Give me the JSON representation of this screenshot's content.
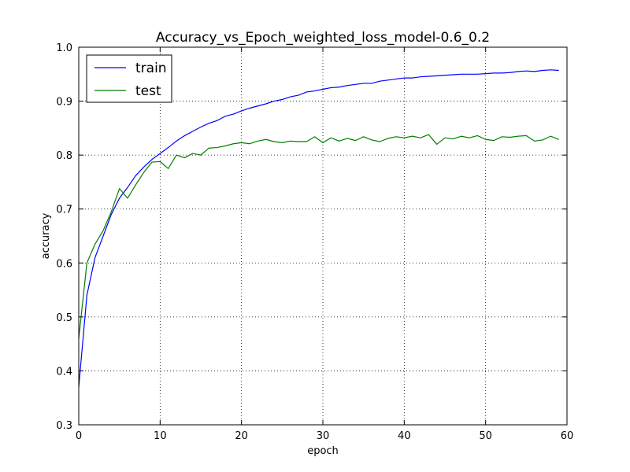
{
  "chart_data": {
    "type": "line",
    "title": "Accuracy_vs_Epoch_weighted_loss_model-0.6_0.2",
    "xlabel": "epoch",
    "ylabel": "accuracy",
    "xlim": [
      0,
      60
    ],
    "ylim": [
      0.3,
      1.0
    ],
    "xticks": [
      0,
      10,
      20,
      30,
      40,
      50,
      60
    ],
    "yticks": [
      0.3,
      0.4,
      0.5,
      0.6,
      0.7,
      0.8,
      0.9,
      1.0
    ],
    "grid": true,
    "legend_position": "top-left",
    "series": [
      {
        "name": "train",
        "color": "#0000ff",
        "x": [
          0,
          1,
          2,
          3,
          4,
          5,
          6,
          7,
          8,
          9,
          10,
          11,
          12,
          13,
          14,
          15,
          16,
          17,
          18,
          19,
          20,
          21,
          22,
          23,
          24,
          25,
          26,
          27,
          28,
          29,
          30,
          31,
          32,
          33,
          34,
          35,
          36,
          37,
          38,
          39,
          40,
          41,
          42,
          43,
          44,
          45,
          46,
          47,
          48,
          49,
          50,
          51,
          52,
          53,
          54,
          55,
          56,
          57,
          58,
          59
        ],
        "y": [
          0.37,
          0.54,
          0.61,
          0.65,
          0.69,
          0.72,
          0.74,
          0.762,
          0.778,
          0.792,
          0.803,
          0.814,
          0.826,
          0.836,
          0.844,
          0.852,
          0.859,
          0.864,
          0.872,
          0.876,
          0.882,
          0.887,
          0.891,
          0.895,
          0.9,
          0.903,
          0.908,
          0.911,
          0.917,
          0.919,
          0.922,
          0.925,
          0.926,
          0.929,
          0.931,
          0.933,
          0.933,
          0.937,
          0.939,
          0.941,
          0.943,
          0.943,
          0.945,
          0.946,
          0.947,
          0.948,
          0.949,
          0.95,
          0.95,
          0.95,
          0.951,
          0.952,
          0.952,
          0.953,
          0.955,
          0.956,
          0.955,
          0.957,
          0.958,
          0.957
        ]
      },
      {
        "name": "test",
        "color": "#008000",
        "x": [
          0,
          1,
          2,
          3,
          4,
          5,
          6,
          7,
          8,
          9,
          10,
          11,
          12,
          13,
          14,
          15,
          16,
          17,
          18,
          19,
          20,
          21,
          22,
          23,
          24,
          25,
          26,
          27,
          28,
          29,
          30,
          31,
          32,
          33,
          34,
          35,
          36,
          37,
          38,
          39,
          40,
          41,
          42,
          43,
          44,
          45,
          46,
          47,
          48,
          49,
          50,
          51,
          52,
          53,
          54,
          55,
          56,
          57,
          58,
          59
        ],
        "y": [
          0.46,
          0.6,
          0.635,
          0.66,
          0.695,
          0.738,
          0.72,
          0.745,
          0.768,
          0.787,
          0.788,
          0.775,
          0.8,
          0.795,
          0.803,
          0.8,
          0.813,
          0.814,
          0.817,
          0.821,
          0.823,
          0.821,
          0.826,
          0.829,
          0.825,
          0.823,
          0.826,
          0.825,
          0.825,
          0.834,
          0.823,
          0.832,
          0.826,
          0.831,
          0.827,
          0.834,
          0.828,
          0.825,
          0.831,
          0.834,
          0.832,
          0.835,
          0.832,
          0.838,
          0.82,
          0.832,
          0.83,
          0.835,
          0.832,
          0.836,
          0.829,
          0.827,
          0.834,
          0.833,
          0.835,
          0.836,
          0.826,
          0.828,
          0.835,
          0.829
        ]
      }
    ]
  }
}
